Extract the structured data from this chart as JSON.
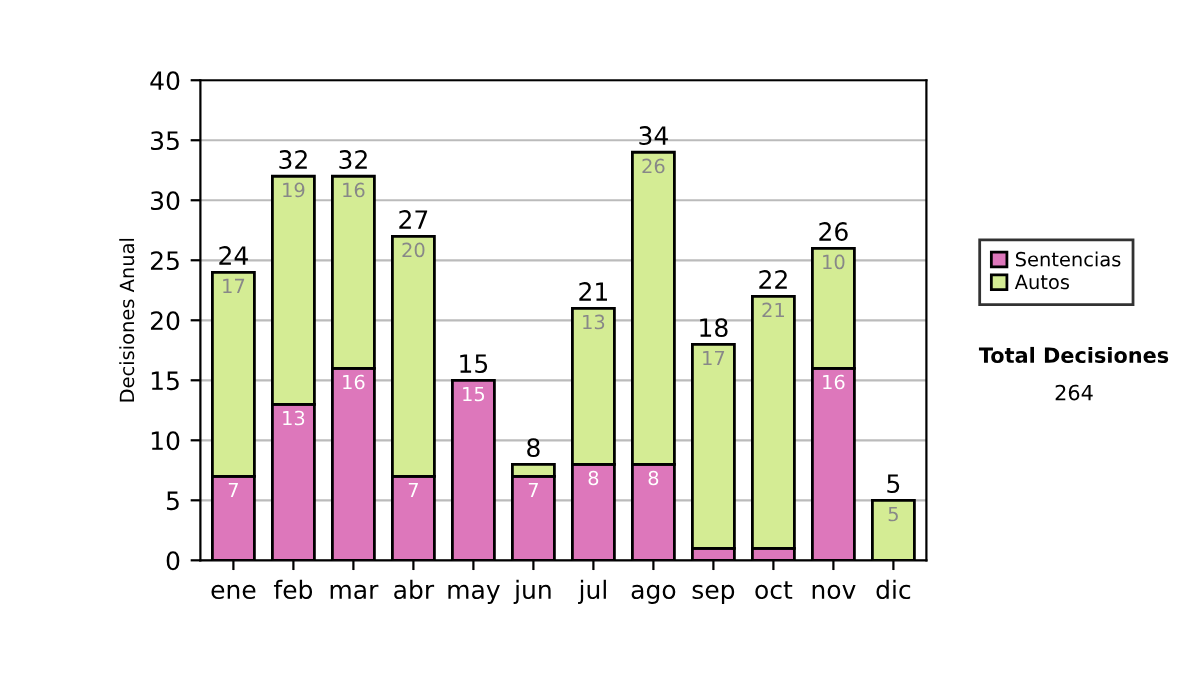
{
  "chart_data": {
    "type": "bar",
    "stacked": true,
    "ylabel": "Decisiones Anual",
    "categories": [
      "ene",
      "feb",
      "mar",
      "abr",
      "may",
      "jun",
      "jul",
      "ago",
      "sep",
      "oct",
      "nov",
      "dic"
    ],
    "series": [
      {
        "name": "Sentencias",
        "color": "#dd77bb",
        "values": [
          7,
          13,
          16,
          7,
          15,
          7,
          8,
          8,
          1,
          1,
          16,
          0
        ],
        "value_labels": [
          "7",
          "13",
          "16",
          "7",
          "15",
          "7",
          "8",
          "8",
          null,
          null,
          "16",
          null
        ]
      },
      {
        "name": "Autos",
        "color": "#d4ec94",
        "values": [
          17,
          19,
          16,
          20,
          0,
          1,
          13,
          26,
          17,
          21,
          10,
          5
        ],
        "value_labels": [
          "17",
          "19",
          "16",
          "20",
          null,
          null,
          "13",
          "26",
          "17",
          "21",
          "10",
          "5"
        ]
      }
    ],
    "totals": [
      "24",
      "32",
      "32",
      "27",
      "15",
      "8",
      "21",
      "34",
      "18",
      "22",
      "26",
      "5"
    ],
    "ylim": [
      0,
      40
    ],
    "yticks": [
      0,
      5,
      10,
      15,
      20,
      25,
      30,
      35,
      40
    ],
    "grid": "y",
    "legend": "right",
    "annotations": [
      "Total Decisiones",
      "264"
    ]
  }
}
